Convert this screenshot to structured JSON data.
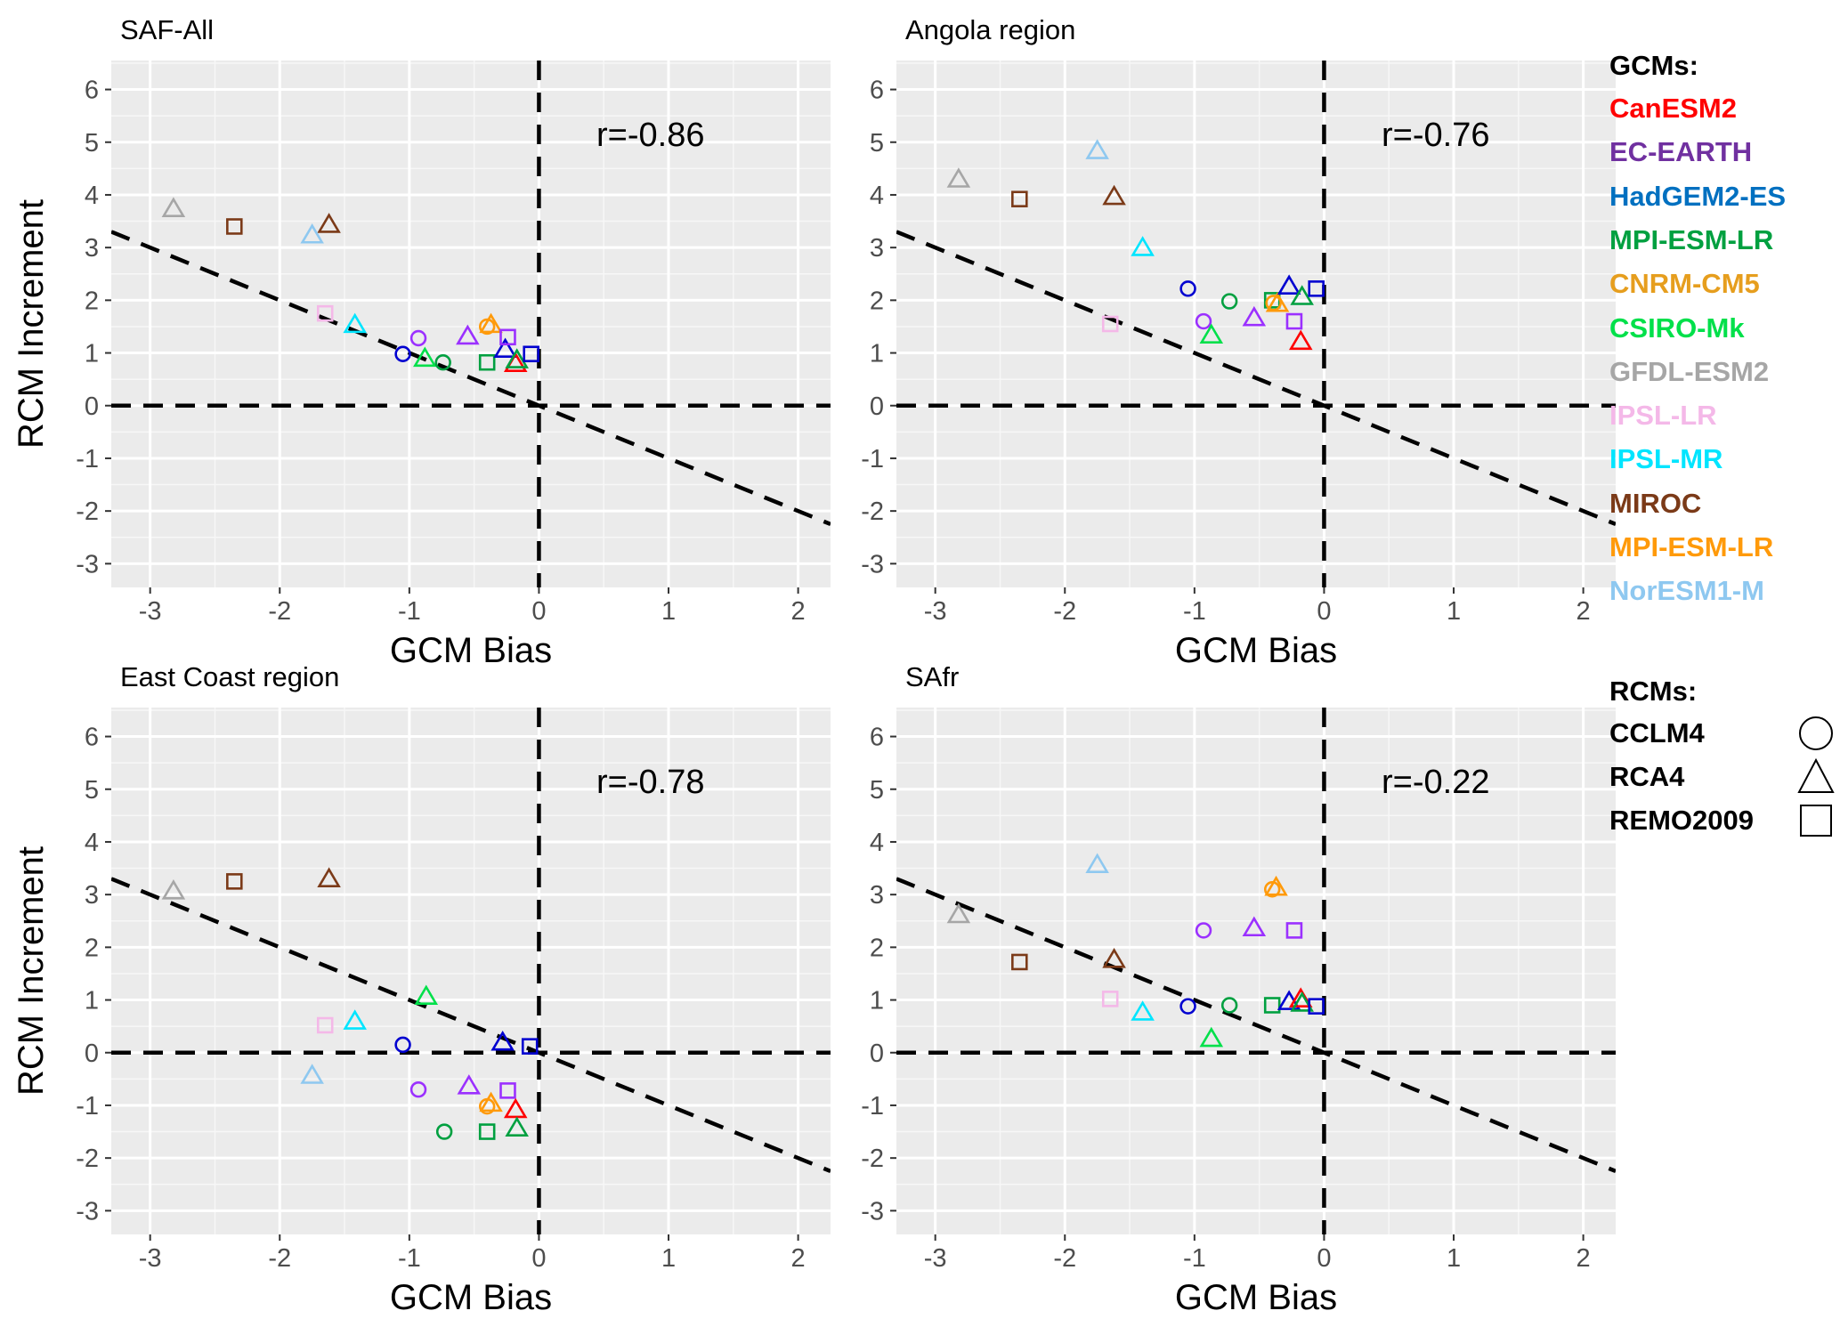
{
  "legend": {
    "gcm_title": "GCMs:",
    "gcms": [
      {
        "name": "CanESM2",
        "color": "#ff0000"
      },
      {
        "name": "EC-EARTH",
        "color": "#7030a0"
      },
      {
        "name": "HadGEM2-ES",
        "color": "#0070c0"
      },
      {
        "name": "MPI-ESM-LR",
        "color": "#00a040"
      },
      {
        "name": "CNRM-CM5",
        "color": "#e69e1e"
      },
      {
        "name": "CSIRO-Mk",
        "color": "#00e04a"
      },
      {
        "name": "GFDL-ESM2",
        "color": "#a6a6a6"
      },
      {
        "name": "IPSL-LR",
        "color": "#f4b8e8"
      },
      {
        "name": "IPSL-MR",
        "color": "#00e5ff"
      },
      {
        "name": "MIROC",
        "color": "#7b3a18"
      },
      {
        "name": "MPI-ESM-LR",
        "color": "#ff9a0a"
      },
      {
        "name": "NorESM1-M",
        "color": "#8ec8f0"
      }
    ],
    "rcm_title": "RCMs:",
    "rcms": [
      {
        "name": "CCLM4",
        "shape": "circle"
      },
      {
        "name": "RCA4",
        "shape": "triangle"
      },
      {
        "name": "REMO2009",
        "shape": "square"
      }
    ]
  },
  "chart_data": [
    {
      "type": "scatter",
      "title": "SAF-All",
      "xlabel": "GCM Bias",
      "ylabel": "RCM Increment",
      "xlim": [
        -3.3,
        2.25
      ],
      "ylim": [
        -3.45,
        6.55
      ],
      "xticks": [
        -3,
        -2,
        -1,
        0,
        1,
        2
      ],
      "yticks": [
        -3,
        -2,
        -1,
        0,
        1,
        2,
        3,
        4,
        5,
        6
      ],
      "annotation": "r=-0.86",
      "regression_slope": -1.0,
      "points": [
        {
          "x": -2.82,
          "y": 3.72,
          "gcm": "GFDL-ESM2",
          "color": "#a6a6a6",
          "shape": "triangle"
        },
        {
          "x": -2.35,
          "y": 3.4,
          "gcm": "MIROC",
          "color": "#7b3a18",
          "shape": "square"
        },
        {
          "x": -1.62,
          "y": 3.42,
          "gcm": "MIROC",
          "color": "#7b3a18",
          "shape": "triangle"
        },
        {
          "x": -1.75,
          "y": 3.22,
          "gcm": "NorESM1-M",
          "color": "#8ec8f0",
          "shape": "triangle"
        },
        {
          "x": -1.65,
          "y": 1.75,
          "gcm": "IPSL-LR",
          "color": "#f4b8e8",
          "shape": "square"
        },
        {
          "x": -1.42,
          "y": 1.52,
          "gcm": "IPSL-MR",
          "color": "#00e5ff",
          "shape": "triangle"
        },
        {
          "x": -1.05,
          "y": 0.98,
          "gcm": "HadGEM2-ES",
          "color": "#0000d0",
          "shape": "circle"
        },
        {
          "x": -0.93,
          "y": 1.28,
          "gcm": "EC-EARTH",
          "color": "#9b30ff",
          "shape": "circle"
        },
        {
          "x": -0.88,
          "y": 0.88,
          "gcm": "CSIRO-Mk",
          "color": "#00e04a",
          "shape": "triangle"
        },
        {
          "x": -0.74,
          "y": 0.82,
          "gcm": "MPI-ESM-LR",
          "color": "#00a040",
          "shape": "circle"
        },
        {
          "x": -0.55,
          "y": 1.3,
          "gcm": "EC-EARTH",
          "color": "#9b30ff",
          "shape": "triangle"
        },
        {
          "x": -0.4,
          "y": 0.82,
          "gcm": "MPI-ESM-LR",
          "color": "#00a040",
          "shape": "square"
        },
        {
          "x": -0.4,
          "y": 1.5,
          "gcm": "CNRM-CM5",
          "color": "#ff9a0a",
          "shape": "circle"
        },
        {
          "x": -0.37,
          "y": 1.52,
          "gcm": "CNRM-CM5",
          "color": "#ff9a0a",
          "shape": "triangle"
        },
        {
          "x": -0.26,
          "y": 1.05,
          "gcm": "HadGEM2-ES",
          "color": "#0000d0",
          "shape": "triangle"
        },
        {
          "x": -0.24,
          "y": 1.3,
          "gcm": "EC-EARTH",
          "color": "#9b30ff",
          "shape": "square"
        },
        {
          "x": -0.18,
          "y": 0.78,
          "gcm": "CanESM2",
          "color": "#ff0000",
          "shape": "triangle"
        },
        {
          "x": -0.17,
          "y": 0.85,
          "gcm": "MPI-ESM-LR",
          "color": "#00a040",
          "shape": "triangle"
        },
        {
          "x": -0.06,
          "y": 0.98,
          "gcm": "HadGEM2-ES",
          "color": "#0000d0",
          "shape": "square"
        }
      ]
    },
    {
      "type": "scatter",
      "title": "Angola region",
      "xlabel": "GCM Bias",
      "ylabel": "",
      "xlim": [
        -3.3,
        2.25
      ],
      "ylim": [
        -3.45,
        6.55
      ],
      "xticks": [
        -3,
        -2,
        -1,
        0,
        1,
        2
      ],
      "yticks": [
        -3,
        -2,
        -1,
        0,
        1,
        2,
        3,
        4,
        5,
        6
      ],
      "annotation": "r=-0.76",
      "regression_slope": -1.0,
      "points": [
        {
          "x": -2.82,
          "y": 4.28,
          "gcm": "GFDL-ESM2",
          "color": "#a6a6a6",
          "shape": "triangle"
        },
        {
          "x": -2.35,
          "y": 3.92,
          "gcm": "MIROC",
          "color": "#7b3a18",
          "shape": "square"
        },
        {
          "x": -1.62,
          "y": 3.95,
          "gcm": "MIROC",
          "color": "#7b3a18",
          "shape": "triangle"
        },
        {
          "x": -1.75,
          "y": 4.82,
          "gcm": "NorESM1-M",
          "color": "#8ec8f0",
          "shape": "triangle"
        },
        {
          "x": -1.65,
          "y": 1.55,
          "gcm": "IPSL-LR",
          "color": "#f4b8e8",
          "shape": "square"
        },
        {
          "x": -1.4,
          "y": 2.98,
          "gcm": "IPSL-MR",
          "color": "#00e5ff",
          "shape": "triangle"
        },
        {
          "x": -1.05,
          "y": 2.22,
          "gcm": "HadGEM2-ES",
          "color": "#0000d0",
          "shape": "circle"
        },
        {
          "x": -0.93,
          "y": 1.6,
          "gcm": "EC-EARTH",
          "color": "#9b30ff",
          "shape": "circle"
        },
        {
          "x": -0.87,
          "y": 1.32,
          "gcm": "CSIRO-Mk",
          "color": "#00e04a",
          "shape": "triangle"
        },
        {
          "x": -0.73,
          "y": 1.98,
          "gcm": "MPI-ESM-LR",
          "color": "#00a040",
          "shape": "circle"
        },
        {
          "x": -0.54,
          "y": 1.65,
          "gcm": "EC-EARTH",
          "color": "#9b30ff",
          "shape": "triangle"
        },
        {
          "x": -0.4,
          "y": 2.0,
          "gcm": "MPI-ESM-LR",
          "color": "#00a040",
          "shape": "square"
        },
        {
          "x": -0.39,
          "y": 1.95,
          "gcm": "CNRM-CM5",
          "color": "#ff9a0a",
          "shape": "circle"
        },
        {
          "x": -0.36,
          "y": 1.92,
          "gcm": "CNRM-CM5",
          "color": "#ff9a0a",
          "shape": "triangle"
        },
        {
          "x": -0.27,
          "y": 2.25,
          "gcm": "HadGEM2-ES",
          "color": "#0000d0",
          "shape": "triangle"
        },
        {
          "x": -0.23,
          "y": 1.6,
          "gcm": "EC-EARTH",
          "color": "#9b30ff",
          "shape": "square"
        },
        {
          "x": -0.17,
          "y": 2.05,
          "gcm": "MPI-ESM-LR",
          "color": "#00a040",
          "shape": "triangle"
        },
        {
          "x": -0.18,
          "y": 1.2,
          "gcm": "CanESM2",
          "color": "#ff0000",
          "shape": "triangle"
        },
        {
          "x": -0.06,
          "y": 2.22,
          "gcm": "HadGEM2-ES",
          "color": "#0000d0",
          "shape": "square"
        }
      ]
    },
    {
      "type": "scatter",
      "title": "East Coast region",
      "xlabel": "GCM Bias",
      "ylabel": "RCM Increment",
      "xlim": [
        -3.3,
        2.25
      ],
      "ylim": [
        -3.45,
        6.55
      ],
      "xticks": [
        -3,
        -2,
        -1,
        0,
        1,
        2
      ],
      "yticks": [
        -3,
        -2,
        -1,
        0,
        1,
        2,
        3,
        4,
        5,
        6
      ],
      "annotation": "r=-0.78",
      "regression_slope": -1.0,
      "points": [
        {
          "x": -2.82,
          "y": 3.05,
          "gcm": "GFDL-ESM2",
          "color": "#a6a6a6",
          "shape": "triangle"
        },
        {
          "x": -2.35,
          "y": 3.25,
          "gcm": "MIROC",
          "color": "#7b3a18",
          "shape": "square"
        },
        {
          "x": -1.62,
          "y": 3.28,
          "gcm": "MIROC",
          "color": "#7b3a18",
          "shape": "triangle"
        },
        {
          "x": -1.75,
          "y": -0.45,
          "gcm": "NorESM1-M",
          "color": "#8ec8f0",
          "shape": "triangle"
        },
        {
          "x": -1.65,
          "y": 0.52,
          "gcm": "IPSL-LR",
          "color": "#f4b8e8",
          "shape": "square"
        },
        {
          "x": -1.42,
          "y": 0.58,
          "gcm": "IPSL-MR",
          "color": "#00e5ff",
          "shape": "triangle"
        },
        {
          "x": -1.05,
          "y": 0.15,
          "gcm": "HadGEM2-ES",
          "color": "#0000d0",
          "shape": "circle"
        },
        {
          "x": -0.93,
          "y": -0.7,
          "gcm": "EC-EARTH",
          "color": "#9b30ff",
          "shape": "circle"
        },
        {
          "x": -0.87,
          "y": 1.05,
          "gcm": "CSIRO-Mk",
          "color": "#00e04a",
          "shape": "triangle"
        },
        {
          "x": -0.73,
          "y": -1.5,
          "gcm": "MPI-ESM-LR",
          "color": "#00a040",
          "shape": "circle"
        },
        {
          "x": -0.54,
          "y": -0.65,
          "gcm": "EC-EARTH",
          "color": "#9b30ff",
          "shape": "triangle"
        },
        {
          "x": -0.4,
          "y": -1.5,
          "gcm": "MPI-ESM-LR",
          "color": "#00a040",
          "shape": "square"
        },
        {
          "x": -0.4,
          "y": -1.02,
          "gcm": "CNRM-CM5",
          "color": "#ff9a0a",
          "shape": "circle"
        },
        {
          "x": -0.37,
          "y": -0.98,
          "gcm": "CNRM-CM5",
          "color": "#ff9a0a",
          "shape": "triangle"
        },
        {
          "x": -0.28,
          "y": 0.18,
          "gcm": "HadGEM2-ES",
          "color": "#0000d0",
          "shape": "triangle"
        },
        {
          "x": -0.24,
          "y": -0.72,
          "gcm": "EC-EARTH",
          "color": "#9b30ff",
          "shape": "square"
        },
        {
          "x": -0.18,
          "y": -1.1,
          "gcm": "CanESM2",
          "color": "#ff0000",
          "shape": "triangle"
        },
        {
          "x": -0.17,
          "y": -1.45,
          "gcm": "MPI-ESM-LR",
          "color": "#00a040",
          "shape": "triangle"
        },
        {
          "x": -0.07,
          "y": 0.12,
          "gcm": "HadGEM2-ES",
          "color": "#0000d0",
          "shape": "square"
        }
      ]
    },
    {
      "type": "scatter",
      "title": "SAfr",
      "xlabel": "GCM Bias",
      "ylabel": "",
      "xlim": [
        -3.3,
        2.25
      ],
      "ylim": [
        -3.45,
        6.55
      ],
      "xticks": [
        -3,
        -2,
        -1,
        0,
        1,
        2
      ],
      "yticks": [
        -3,
        -2,
        -1,
        0,
        1,
        2,
        3,
        4,
        5,
        6
      ],
      "annotation": "r=-0.22",
      "regression_slope": -1.0,
      "points": [
        {
          "x": -2.82,
          "y": 2.6,
          "gcm": "GFDL-ESM2",
          "color": "#a6a6a6",
          "shape": "triangle"
        },
        {
          "x": -2.35,
          "y": 1.72,
          "gcm": "MIROC",
          "color": "#7b3a18",
          "shape": "square"
        },
        {
          "x": -1.62,
          "y": 1.75,
          "gcm": "MIROC",
          "color": "#7b3a18",
          "shape": "triangle"
        },
        {
          "x": -1.75,
          "y": 3.55,
          "gcm": "NorESM1-M",
          "color": "#8ec8f0",
          "shape": "triangle"
        },
        {
          "x": -1.65,
          "y": 1.02,
          "gcm": "IPSL-LR",
          "color": "#f4b8e8",
          "shape": "square"
        },
        {
          "x": -1.4,
          "y": 0.75,
          "gcm": "IPSL-MR",
          "color": "#00e5ff",
          "shape": "triangle"
        },
        {
          "x": -1.05,
          "y": 0.88,
          "gcm": "HadGEM2-ES",
          "color": "#0000d0",
          "shape": "circle"
        },
        {
          "x": -0.93,
          "y": 2.32,
          "gcm": "EC-EARTH",
          "color": "#9b30ff",
          "shape": "circle"
        },
        {
          "x": -0.87,
          "y": 0.25,
          "gcm": "CSIRO-Mk",
          "color": "#00e04a",
          "shape": "triangle"
        },
        {
          "x": -0.73,
          "y": 0.9,
          "gcm": "MPI-ESM-LR",
          "color": "#00a040",
          "shape": "circle"
        },
        {
          "x": -0.54,
          "y": 2.35,
          "gcm": "EC-EARTH",
          "color": "#9b30ff",
          "shape": "triangle"
        },
        {
          "x": -0.4,
          "y": 0.9,
          "gcm": "MPI-ESM-LR",
          "color": "#00a040",
          "shape": "square"
        },
        {
          "x": -0.4,
          "y": 3.1,
          "gcm": "CNRM-CM5",
          "color": "#ff9a0a",
          "shape": "circle"
        },
        {
          "x": -0.37,
          "y": 3.12,
          "gcm": "CNRM-CM5",
          "color": "#ff9a0a",
          "shape": "triangle"
        },
        {
          "x": -0.27,
          "y": 0.95,
          "gcm": "HadGEM2-ES",
          "color": "#0000d0",
          "shape": "triangle"
        },
        {
          "x": -0.23,
          "y": 2.32,
          "gcm": "EC-EARTH",
          "color": "#9b30ff",
          "shape": "square"
        },
        {
          "x": -0.18,
          "y": 1.0,
          "gcm": "CanESM2",
          "color": "#ff0000",
          "shape": "triangle"
        },
        {
          "x": -0.17,
          "y": 0.92,
          "gcm": "MPI-ESM-LR",
          "color": "#00a040",
          "shape": "triangle"
        },
        {
          "x": -0.06,
          "y": 0.88,
          "gcm": "HadGEM2-ES",
          "color": "#0000d0",
          "shape": "square"
        }
      ]
    }
  ]
}
